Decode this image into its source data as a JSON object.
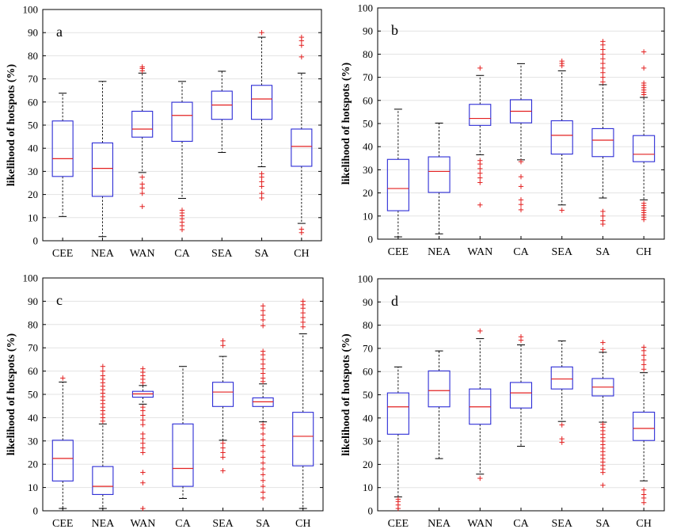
{
  "figure": {
    "panels": [
      "a",
      "b",
      "c",
      "d"
    ]
  },
  "chart_data": [
    {
      "type": "box",
      "panel_label": "a",
      "ylabel": "likelihood of hotspots (%)",
      "ylim": [
        0,
        100
      ],
      "yticks": [
        0,
        10,
        20,
        30,
        40,
        50,
        60,
        70,
        80,
        90,
        100
      ],
      "grid": true,
      "categories": [
        "CEE",
        "NEA",
        "WAN",
        "CA",
        "SEA",
        "SA",
        "CH"
      ],
      "colors": {
        "box": "#2c2cd6",
        "median": "#e32020",
        "whisker": "#000000",
        "outlier": "#e32020"
      },
      "boxes": [
        {
          "min": 10.5,
          "q1": 27.8,
          "median": 35.5,
          "q3": 51.8,
          "max": 63.8,
          "outliers": []
        },
        {
          "min": 1.8,
          "q1": 19.2,
          "median": 31.3,
          "q3": 42.3,
          "max": 68.9,
          "outliers": []
        },
        {
          "min": 29.5,
          "q1": 44.8,
          "median": 48.3,
          "q3": 56.0,
          "max": 72.5,
          "outliers": [
            14.8,
            20.5,
            22.8,
            24.5,
            27.5,
            73.5,
            74.5,
            75.2
          ]
        },
        {
          "min": 18.3,
          "q1": 43.0,
          "median": 54.2,
          "q3": 59.9,
          "max": 68.9,
          "outliers": [
            4.8,
            6.5,
            8.0,
            9.5,
            10.8,
            12.0,
            13.2
          ]
        },
        {
          "min": 38.2,
          "q1": 52.5,
          "median": 58.7,
          "q3": 64.7,
          "max": 73.3,
          "outliers": []
        },
        {
          "min": 32.0,
          "q1": 52.5,
          "median": 61.3,
          "q3": 67.2,
          "max": 88.0,
          "outliers": [
            18.5,
            20.5,
            23.5,
            25.5,
            27.5,
            29.0,
            90.0
          ]
        },
        {
          "min": 7.5,
          "q1": 32.2,
          "median": 40.8,
          "q3": 48.3,
          "max": 72.5,
          "outliers": [
            3.5,
            5.0,
            79.5,
            84.5,
            86.5,
            88.0
          ]
        }
      ]
    },
    {
      "type": "box",
      "panel_label": "b",
      "ylabel": "likelihood of hotspots (%)",
      "ylim": [
        0,
        100
      ],
      "yticks": [
        0,
        10,
        20,
        30,
        40,
        50,
        60,
        70,
        80,
        90,
        100
      ],
      "grid": true,
      "categories": [
        "CEE",
        "NEA",
        "WAN",
        "CA",
        "SEA",
        "SA",
        "CH"
      ],
      "colors": {
        "box": "#2c2cd6",
        "median": "#e32020",
        "whisker": "#000000",
        "outlier": "#e32020"
      },
      "boxes": [
        {
          "min": 1.0,
          "q1": 12.3,
          "median": 21.9,
          "q3": 34.5,
          "max": 56.2,
          "outliers": []
        },
        {
          "min": 2.3,
          "q1": 20.2,
          "median": 29.3,
          "q3": 35.6,
          "max": 50.2,
          "outliers": []
        },
        {
          "min": 36.5,
          "q1": 49.2,
          "median": 52.2,
          "q3": 58.3,
          "max": 70.8,
          "outliers": [
            14.8,
            24.5,
            26.5,
            28.5,
            30.5,
            32.5,
            34.0,
            74.0
          ]
        },
        {
          "min": 34.3,
          "q1": 50.3,
          "median": 55.3,
          "q3": 60.3,
          "max": 75.9,
          "outliers": [
            12.7,
            15.0,
            17.0,
            22.8,
            27.0,
            33.5
          ]
        },
        {
          "min": 14.8,
          "q1": 36.8,
          "median": 44.9,
          "q3": 51.2,
          "max": 72.8,
          "outliers": [
            12.5,
            75.0,
            76.0,
            77.0
          ]
        },
        {
          "min": 17.8,
          "q1": 35.7,
          "median": 42.8,
          "q3": 47.8,
          "max": 66.8,
          "outliers": [
            6.5,
            8.0,
            10.0,
            12.0,
            68.0,
            70.0,
            72.0,
            74.0,
            76.0,
            78.0,
            80.0,
            82.0,
            84.0,
            85.5
          ]
        },
        {
          "min": 17.0,
          "q1": 33.5,
          "median": 36.7,
          "q3": 44.8,
          "max": 61.3,
          "outliers": [
            8.5,
            9.5,
            10.5,
            11.5,
            12.5,
            13.5,
            14.5,
            15.5,
            62.5,
            63.5,
            64.5,
            65.5,
            66.5,
            67.5,
            74.0,
            81.0
          ]
        }
      ]
    },
    {
      "type": "box",
      "panel_label": "c",
      "ylabel": "likelihood of hotspots (%)",
      "ylim": [
        0,
        100
      ],
      "yticks": [
        0,
        10,
        20,
        30,
        40,
        50,
        60,
        70,
        80,
        90,
        100
      ],
      "grid": true,
      "categories": [
        "CEE",
        "NEA",
        "WAN",
        "CA",
        "SEA",
        "SA",
        "CH"
      ],
      "colors": {
        "box": "#2c2cd6",
        "median": "#e32020",
        "whisker": "#000000",
        "outlier": "#e32020"
      },
      "boxes": [
        {
          "min": 1.0,
          "q1": 12.8,
          "median": 22.5,
          "q3": 30.3,
          "max": 55.3,
          "outliers": [
            57.0
          ]
        },
        {
          "min": 1.0,
          "q1": 7.0,
          "median": 10.5,
          "q3": 19.0,
          "max": 37.3,
          "outliers": [
            38.5,
            40.0,
            41.5,
            43.0,
            44.5,
            46.0,
            47.5,
            49.0,
            50.5,
            52.0,
            53.5,
            55.0,
            56.5,
            58.0,
            60.0,
            62.0
          ]
        },
        {
          "min": 45.8,
          "q1": 48.8,
          "median": 50.2,
          "q3": 51.3,
          "max": 53.8,
          "outliers": [
            1.0,
            12.0,
            16.5,
            25.0,
            27.0,
            29.0,
            31.0,
            33.0,
            37.0,
            39.0,
            41.0,
            43.0,
            44.5,
            55.0,
            56.5,
            58.0,
            59.5,
            61.0
          ]
        },
        {
          "min": 5.3,
          "q1": 10.5,
          "median": 18.2,
          "q3": 37.3,
          "max": 62.0,
          "outliers": []
        },
        {
          "min": 30.3,
          "q1": 44.8,
          "median": 51.0,
          "q3": 55.2,
          "max": 66.3,
          "outliers": [
            17.2,
            23.0,
            25.0,
            27.0,
            29.0,
            71.0,
            73.0
          ]
        },
        {
          "min": 38.2,
          "q1": 44.8,
          "median": 46.8,
          "q3": 48.5,
          "max": 54.5,
          "outliers": [
            5.5,
            8.0,
            10.5,
            13.0,
            15.5,
            18.0,
            20.5,
            23.0,
            25.5,
            28.0,
            30.5,
            33.0,
            35.5,
            37.0,
            55.5,
            57.0,
            59.0,
            61.0,
            63.0,
            65.0,
            67.0,
            68.5,
            79.5,
            82.0,
            84.0,
            86.0,
            88.0
          ]
        },
        {
          "min": 1.0,
          "q1": 19.3,
          "median": 32.0,
          "q3": 42.3,
          "max": 76.0,
          "outliers": [
            79.0,
            81.0,
            83.0,
            85.0,
            87.0,
            88.5,
            90.0
          ]
        }
      ]
    },
    {
      "type": "box",
      "panel_label": "d",
      "ylabel": "likelihood of hotspots (%)",
      "ylim": [
        0,
        100
      ],
      "yticks": [
        0,
        10,
        20,
        30,
        40,
        50,
        60,
        70,
        80,
        90,
        100
      ],
      "grid": true,
      "categories": [
        "CEE",
        "NEA",
        "WAN",
        "CA",
        "SEA",
        "SA",
        "CH"
      ],
      "colors": {
        "box": "#2c2cd6",
        "median": "#e32020",
        "whisker": "#000000",
        "outlier": "#e32020"
      },
      "boxes": [
        {
          "min": 6.0,
          "q1": 33.0,
          "median": 44.8,
          "q3": 50.8,
          "max": 62.0,
          "outliers": [
            1.0,
            2.5,
            4.0,
            5.0
          ]
        },
        {
          "min": 22.5,
          "q1": 44.8,
          "median": 51.8,
          "q3": 60.3,
          "max": 68.9,
          "outliers": []
        },
        {
          "min": 15.8,
          "q1": 37.3,
          "median": 44.8,
          "q3": 52.5,
          "max": 74.2,
          "outliers": [
            14.0,
            77.5
          ]
        },
        {
          "min": 27.8,
          "q1": 44.3,
          "median": 50.8,
          "q3": 55.3,
          "max": 71.5,
          "outliers": [
            73.5,
            75.0
          ]
        },
        {
          "min": 38.5,
          "q1": 52.5,
          "median": 56.8,
          "q3": 62.0,
          "max": 73.2,
          "outliers": [
            29.5,
            31.0,
            37.0
          ]
        },
        {
          "min": 38.2,
          "q1": 49.5,
          "median": 53.3,
          "q3": 57.0,
          "max": 68.3,
          "outliers": [
            11.0,
            16.5,
            18.0,
            19.5,
            21.0,
            22.5,
            24.0,
            25.5,
            27.0,
            28.5,
            30.0,
            31.5,
            33.0,
            34.5,
            36.0,
            37.3,
            69.5,
            72.5
          ]
        },
        {
          "min": 12.9,
          "q1": 30.3,
          "median": 35.5,
          "q3": 42.5,
          "max": 59.5,
          "outliers": [
            3.5,
            5.5,
            7.0,
            9.0,
            61.0,
            63.0,
            65.0,
            67.0,
            69.0,
            70.5
          ]
        }
      ]
    }
  ]
}
